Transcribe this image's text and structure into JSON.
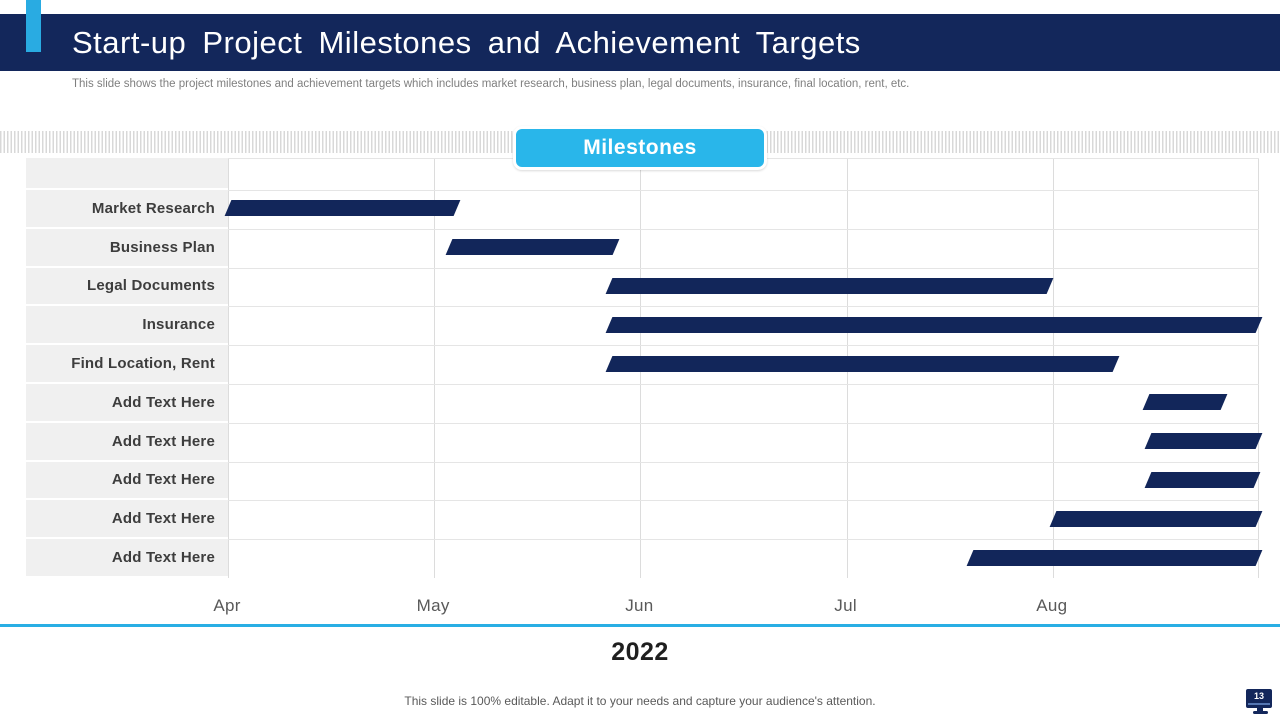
{
  "header": {
    "title": "Start-up Project Milestones and Achievement Targets",
    "subtitle": "This slide shows the project milestones and achievement targets which includes market research, business plan, legal documents, insurance, final location, rent, etc."
  },
  "badge": {
    "label": "Milestones"
  },
  "chart_data": {
    "type": "gantt-bar",
    "title": "Milestones",
    "year_label": "2022",
    "months": [
      "Apr",
      "May",
      "Jun",
      "Jul",
      "Aug"
    ],
    "axis_range_months": [
      0,
      5
    ],
    "grid": true,
    "bar_color": "#12265A",
    "rows": [
      {
        "label": "Market Research",
        "start": 0.0,
        "end": 1.11
      },
      {
        "label": "Business Plan",
        "start": 1.07,
        "end": 1.88
      },
      {
        "label": "Legal Documents",
        "start": 1.85,
        "end": 3.99
      },
      {
        "label": "Insurance",
        "start": 1.85,
        "end": 5.0
      },
      {
        "label": "Find Location, Rent",
        "start": 1.85,
        "end": 4.31
      },
      {
        "label": "Add Text Here",
        "start": 4.45,
        "end": 4.83
      },
      {
        "label": "Add Text Here",
        "start": 4.46,
        "end": 5.0
      },
      {
        "label": "Add Text Here",
        "start": 4.46,
        "end": 4.99
      },
      {
        "label": "Add Text Here",
        "start": 4.0,
        "end": 5.0
      },
      {
        "label": "Add Text Here",
        "start": 3.6,
        "end": 5.0
      }
    ]
  },
  "footer": {
    "note": "This slide is 100% editable. Adapt it to your needs and capture your audience's attention.",
    "slide_number": "13"
  },
  "colors": {
    "navy": "#13275B",
    "bar_navy": "#12265A",
    "accent_cyan": "#29ABE2",
    "button_cyan": "#29B6EA",
    "label_cell_bg": "#F0F0F0"
  }
}
